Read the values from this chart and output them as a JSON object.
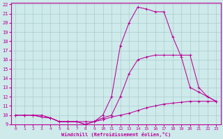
{
  "xlabel": "Windchill (Refroidissement éolien,°C)",
  "bg_color": "#ceeaea",
  "grid_color": "#aacccc",
  "line_color": "#bb0099",
  "xlim": [
    -0.5,
    23.5
  ],
  "ylim": [
    9,
    22.2
  ],
  "xticks": [
    0,
    1,
    2,
    3,
    4,
    5,
    6,
    7,
    8,
    9,
    10,
    11,
    12,
    13,
    14,
    15,
    16,
    17,
    18,
    19,
    20,
    21,
    22,
    23
  ],
  "yticks": [
    9,
    10,
    11,
    12,
    13,
    14,
    15,
    16,
    17,
    18,
    19,
    20,
    21,
    22
  ],
  "curve1_x": [
    0,
    1,
    2,
    3,
    4,
    5,
    6,
    7,
    8,
    9,
    10,
    11,
    12,
    13,
    14,
    15,
    16,
    17,
    18,
    19,
    20,
    21,
    22,
    23
  ],
  "curve1_y": [
    10.0,
    10.0,
    10.0,
    10.0,
    9.7,
    9.3,
    9.3,
    9.3,
    9.3,
    9.3,
    9.5,
    9.8,
    10.0,
    10.2,
    10.5,
    10.8,
    11.0,
    11.2,
    11.3,
    11.4,
    11.5,
    11.5,
    11.5,
    11.5
  ],
  "curve2_x": [
    0,
    1,
    2,
    3,
    4,
    5,
    6,
    7,
    8,
    9,
    10,
    11,
    12,
    13,
    14,
    15,
    16,
    17,
    18,
    19,
    20,
    21,
    22,
    23
  ],
  "curve2_y": [
    10.0,
    10.0,
    10.0,
    9.8,
    9.7,
    9.3,
    9.3,
    9.3,
    9.0,
    9.3,
    9.7,
    10.0,
    12.0,
    14.5,
    16.0,
    16.3,
    16.5,
    16.5,
    16.5,
    16.5,
    16.5,
    13.0,
    12.0,
    11.5
  ],
  "curve3_x": [
    0,
    1,
    2,
    3,
    4,
    5,
    6,
    7,
    8,
    9,
    10,
    11,
    12,
    13,
    14,
    15,
    16,
    17,
    18,
    19,
    20,
    21,
    22,
    23
  ],
  "curve3_y": [
    10.0,
    10.0,
    10.0,
    9.8,
    9.7,
    9.3,
    9.3,
    9.3,
    9.0,
    9.3,
    10.0,
    12.0,
    17.5,
    20.0,
    21.7,
    21.5,
    21.2,
    21.2,
    18.5,
    16.3,
    13.0,
    12.5,
    12.0,
    11.5
  ]
}
